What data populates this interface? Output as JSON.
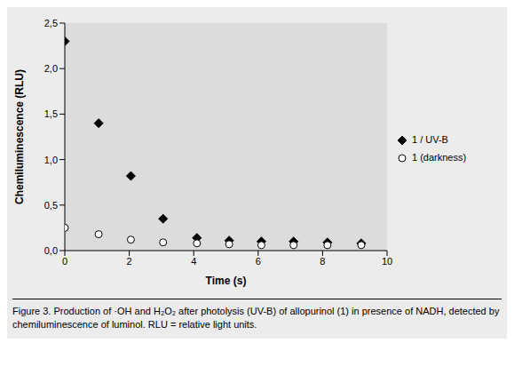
{
  "chart_data": {
    "type": "scatter",
    "x_label": "Time (s)",
    "y_label": "Chemiluminescence (RLU)",
    "caption": "Figure 3. Production of ·OH and H₂O₂ after photolysis (UV-B) of allopurinol (1) in presence of NADH, detected by chemiluminescence of luminol. RLU = relative light units.",
    "xlim": [
      0,
      10
    ],
    "xticks": [
      0,
      2,
      4,
      6,
      8,
      10
    ],
    "ylim": [
      0,
      2.5
    ],
    "yticks": [
      {
        "value": 0,
        "label": "0,0"
      },
      {
        "value": 0.5,
        "label": "0,5"
      },
      {
        "value": 1,
        "label": "1,0"
      },
      {
        "value": 1.5,
        "label": "1,5"
      },
      {
        "value": 2,
        "label": "2,0"
      },
      {
        "value": 2.5,
        "label": "2,5"
      }
    ],
    "grid": false,
    "legend": "right",
    "series": [
      {
        "name": "1 / UV-B",
        "color": "#000000",
        "marker": "diamond",
        "x": [
          0,
          1.05,
          2.05,
          3.05,
          4.1,
          5.1,
          6.1,
          7.1,
          8.15,
          9.2
        ],
        "values": [
          2.3,
          1.4,
          0.82,
          0.35,
          0.14,
          0.11,
          0.1,
          0.1,
          0.09,
          0.08
        ]
      },
      {
        "name": "1 (darkness)",
        "color": "#000000",
        "marker": "circle",
        "x": [
          0,
          1.05,
          2.05,
          3.05,
          4.1,
          5.1,
          6.1,
          7.1,
          8.15,
          9.2
        ],
        "values": [
          0.25,
          0.18,
          0.12,
          0.09,
          0.08,
          0.07,
          0.06,
          0.06,
          0.06,
          0.06
        ]
      }
    ]
  }
}
